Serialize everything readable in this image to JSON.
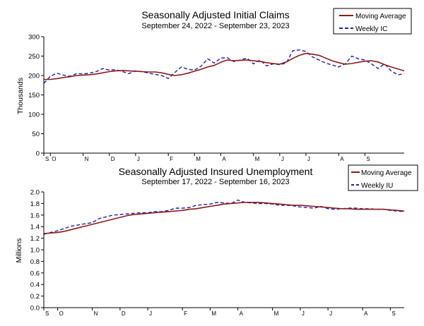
{
  "chart_data": [
    {
      "type": "line",
      "title": "Seasonally Adjusted Initial Claims",
      "subtitle": "September 24, 2022 - September 23, 2023",
      "ylabel": "Thousands",
      "xlabel": "",
      "ylim": [
        0,
        300
      ],
      "yticks": [
        0,
        50,
        100,
        150,
        200,
        250,
        300
      ],
      "grid": false,
      "legend_position": "top-right",
      "x_tick_labels": [
        "S",
        "O",
        "N",
        "D",
        "J",
        "F",
        "M",
        "A",
        "M",
        "J",
        "J",
        "A",
        "S"
      ],
      "x_tick_weeks": [
        0,
        1,
        6,
        10,
        14,
        19,
        23,
        27,
        32,
        36,
        40,
        45,
        49
      ],
      "colors": {
        "moving_average": "#8B1A1A",
        "weekly": "#1F1FA8"
      },
      "series": [
        {
          "name": "Moving Average",
          "style": "solid",
          "values": [
            190,
            190,
            192,
            195,
            197,
            200,
            201,
            202,
            204,
            207,
            210,
            212,
            213,
            212,
            211,
            210,
            209,
            209,
            207,
            203,
            200,
            202,
            206,
            211,
            216,
            222,
            226,
            234,
            240,
            238,
            239,
            240,
            238,
            236,
            233,
            231,
            229,
            235,
            244,
            252,
            257,
            255,
            252,
            245,
            238,
            233,
            229,
            231,
            234,
            237,
            238,
            235,
            228,
            222,
            217,
            212
          ]
        },
        {
          "name": "Weekly IC",
          "style": "dashed",
          "values": [
            180,
            198,
            206,
            201,
            198,
            205,
            204,
            206,
            210,
            218,
            214,
            215,
            210,
            205,
            212,
            210,
            206,
            203,
            200,
            192,
            208,
            222,
            216,
            214,
            224,
            243,
            232,
            245,
            246,
            236,
            240,
            245,
            230,
            240,
            225,
            230,
            228,
            232,
            264,
            266,
            262,
            248,
            240,
            232,
            227,
            222,
            230,
            250,
            243,
            240,
            230,
            218,
            230,
            212,
            202,
            204
          ]
        }
      ]
    },
    {
      "type": "line",
      "title": "Seasonally Adjusted Insured Unemployment",
      "subtitle": "September 17, 2022 - September 16, 2023",
      "ylabel": "Millions",
      "xlabel": "",
      "ylim": [
        0.0,
        2.0
      ],
      "yticks": [
        0.0,
        0.2,
        0.4,
        0.6,
        0.8,
        1.0,
        1.2,
        1.4,
        1.6,
        1.8,
        2.0
      ],
      "ytick_labels": [
        "0.0",
        "0.2",
        "0.4",
        "0.6",
        "0.8",
        "1.0",
        "1.2",
        "1.4",
        "1.6",
        "1.8",
        "2.0"
      ],
      "grid": false,
      "legend_position": "top-right",
      "x_tick_labels": [
        "S",
        "O",
        "N",
        "D",
        "J",
        "F",
        "M",
        "A",
        "M",
        "J",
        "J",
        "A",
        "S"
      ],
      "x_tick_weeks": [
        0,
        2,
        7,
        11,
        15,
        20,
        24,
        28,
        33,
        37,
        41,
        46,
        50
      ],
      "colors": {
        "moving_average": "#8B1A1A",
        "weekly": "#1F1FA8"
      },
      "series": [
        {
          "name": "Moving Average",
          "style": "solid",
          "values": [
            1.28,
            1.29,
            1.3,
            1.32,
            1.35,
            1.38,
            1.41,
            1.44,
            1.47,
            1.5,
            1.53,
            1.56,
            1.59,
            1.61,
            1.62,
            1.63,
            1.64,
            1.65,
            1.66,
            1.67,
            1.68,
            1.7,
            1.71,
            1.73,
            1.75,
            1.77,
            1.79,
            1.8,
            1.81,
            1.82,
            1.82,
            1.82,
            1.81,
            1.8,
            1.79,
            1.78,
            1.77,
            1.77,
            1.76,
            1.75,
            1.74,
            1.73,
            1.72,
            1.71,
            1.71,
            1.7,
            1.7,
            1.7,
            1.7,
            1.7,
            1.69,
            1.68,
            1.67
          ]
        },
        {
          "name": "Weekly IU",
          "style": "dashed",
          "values": [
            1.27,
            1.3,
            1.33,
            1.37,
            1.41,
            1.43,
            1.45,
            1.47,
            1.54,
            1.57,
            1.6,
            1.61,
            1.62,
            1.63,
            1.64,
            1.64,
            1.66,
            1.66,
            1.68,
            1.72,
            1.72,
            1.73,
            1.77,
            1.78,
            1.79,
            1.82,
            1.81,
            1.8,
            1.86,
            1.82,
            1.81,
            1.8,
            1.8,
            1.79,
            1.77,
            1.77,
            1.76,
            1.74,
            1.73,
            1.72,
            1.75,
            1.71,
            1.7,
            1.71,
            1.72,
            1.72,
            1.71,
            1.71,
            1.7,
            1.7,
            1.68,
            1.67,
            1.66
          ]
        }
      ]
    }
  ]
}
